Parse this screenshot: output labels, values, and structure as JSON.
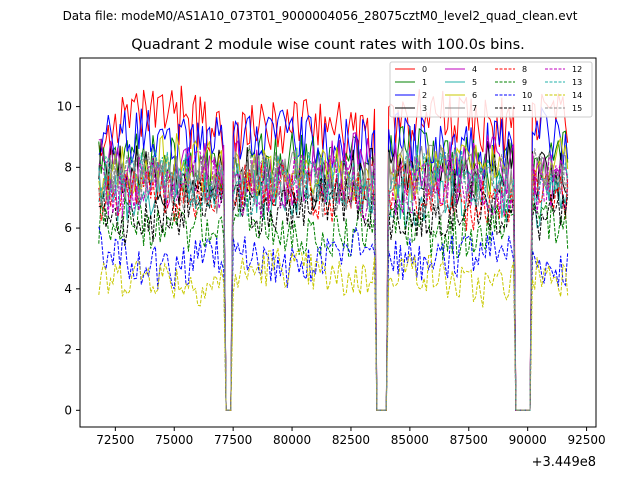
{
  "chart_data": {
    "type": "line",
    "suptitle": "Data file: modeM0/AS1A10_073T01_9000004056_28075cztM0_level2_quad_clean.evt",
    "title": "Quadrant 2 module wise count rates with 100.0s bins.",
    "xlabel": "",
    "ylabel": "",
    "x_offset_label": "+3.449e8",
    "xlim": [
      71000,
      92900
    ],
    "ylim": [
      -0.55,
      11.6
    ],
    "x_ticks": [
      72500,
      75000,
      77500,
      80000,
      82500,
      85000,
      87500,
      90000,
      92500
    ],
    "x_tick_labels": [
      "72500",
      "75000",
      "77500",
      "80000",
      "82500",
      "85000",
      "87500",
      "90000",
      "92500"
    ],
    "y_ticks": [
      0,
      2,
      4,
      6,
      8,
      10
    ],
    "y_tick_labels": [
      "0",
      "2",
      "4",
      "6",
      "8",
      "10"
    ],
    "x_start": 71800,
    "x_end": 91700,
    "bin_seconds": 100,
    "gaps": [
      [
        77200,
        77400
      ],
      [
        83600,
        84000
      ],
      [
        89500,
        90100
      ]
    ],
    "series": [
      {
        "name": "0",
        "color": "#ff0000",
        "dash": "solid",
        "level": 9.4
      },
      {
        "name": "1",
        "color": "#008000",
        "dash": "solid",
        "level": 8.2
      },
      {
        "name": "2",
        "color": "#0000ff",
        "dash": "solid",
        "level": 8.8
      },
      {
        "name": "3",
        "color": "#000000",
        "dash": "solid",
        "level": 7.7
      },
      {
        "name": "4",
        "color": "#bf00bf",
        "dash": "solid",
        "level": 7.9
      },
      {
        "name": "5",
        "color": "#20b2aa",
        "dash": "solid",
        "level": 7.2
      },
      {
        "name": "6",
        "color": "#c8c800",
        "dash": "solid",
        "level": 7.9
      },
      {
        "name": "7",
        "color": "#8c8c8c",
        "dash": "solid",
        "level": 7.6
      },
      {
        "name": "8",
        "color": "#ff0000",
        "dash": "dashed",
        "level": 7.1
      },
      {
        "name": "9",
        "color": "#008000",
        "dash": "dashed",
        "level": 6.0
      },
      {
        "name": "10",
        "color": "#0000ff",
        "dash": "dashed",
        "level": 5.0
      },
      {
        "name": "11",
        "color": "#000000",
        "dash": "dashed",
        "level": 6.6
      },
      {
        "name": "12",
        "color": "#bf00bf",
        "dash": "dashed",
        "level": 7.4
      },
      {
        "name": "13",
        "color": "#20b2aa",
        "dash": "dashed",
        "level": 7.6
      },
      {
        "name": "14",
        "color": "#c8c800",
        "dash": "dashed",
        "level": 4.4
      },
      {
        "name": "15",
        "color": "#8c8c8c",
        "dash": "dashed",
        "level": 7.5
      }
    ],
    "legend_location": "top-right",
    "legend_columns": 4
  }
}
